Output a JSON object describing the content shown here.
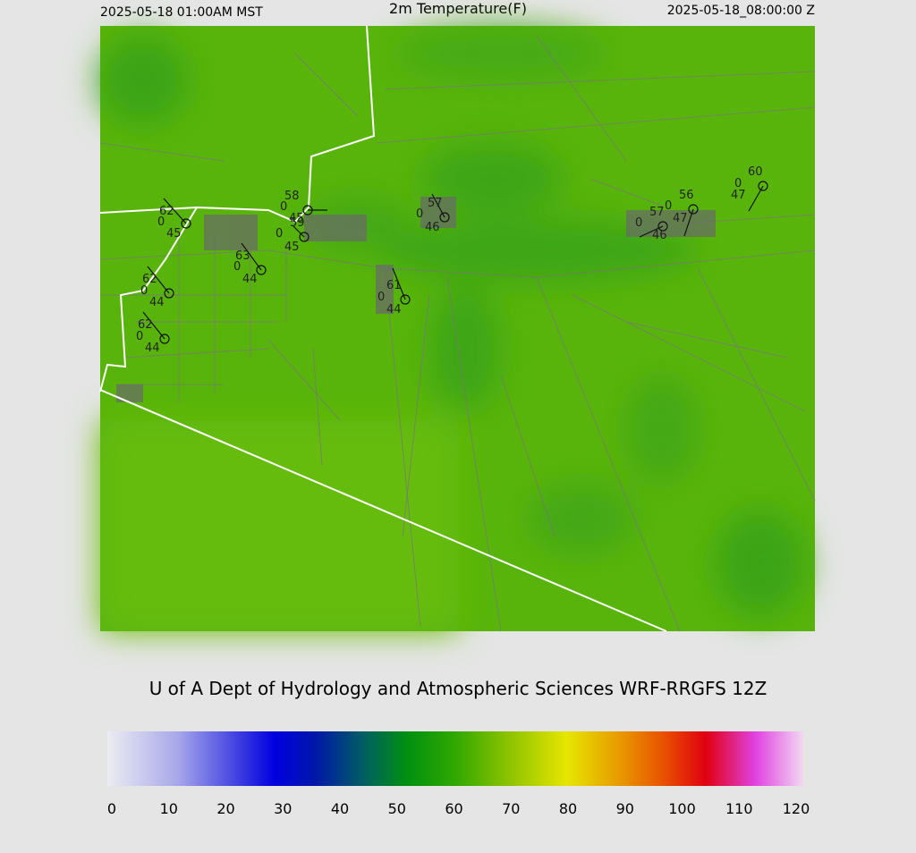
{
  "header": {
    "local_time": "2025-05-18 01:00AM MST",
    "title": "2m Temperature(F)",
    "valid_time": "2025-05-18_08:00:00 Z"
  },
  "stations": [
    {
      "temperature": 62,
      "center": 0,
      "dewpoint": 45
    },
    {
      "temperature": 58,
      "center": 0,
      "dewpoint": 45
    },
    {
      "temperature": 59,
      "center": 0,
      "dewpoint": 45
    },
    {
      "temperature": 63,
      "center": 0,
      "dewpoint": 44
    },
    {
      "temperature": 62,
      "center": 0,
      "dewpoint": 44
    },
    {
      "temperature": 62,
      "center": 0,
      "dewpoint": 44
    },
    {
      "temperature": 61,
      "center": 0,
      "dewpoint": 44
    },
    {
      "temperature": 57,
      "center": 0,
      "dewpoint": 46
    },
    {
      "temperature": 57,
      "center": 0,
      "dewpoint": 46
    },
    {
      "temperature": 56,
      "center": 0,
      "dewpoint": 47
    },
    {
      "temperature": 60,
      "center": 0,
      "dewpoint": 47
    }
  ],
  "credit": "U of A Dept of Hydrology and Atmospheric Sciences WRF-RRGFS 12Z",
  "colorbar": {
    "lim": [
      0,
      120
    ],
    "ticks": [
      0,
      10,
      20,
      30,
      40,
      50,
      60,
      70,
      80,
      90,
      100,
      110,
      120
    ]
  }
}
